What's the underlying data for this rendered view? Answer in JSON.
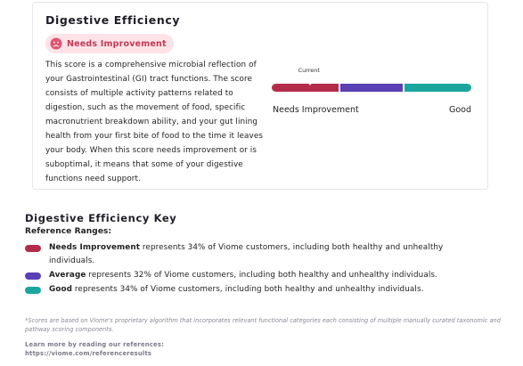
{
  "card": {
    "title": "Digestive Efficiency",
    "badge": {
      "label": "Needs Improvement",
      "icon": "sad-face-icon",
      "color": "#c23a55"
    },
    "description": "This score is a comprehensive microbial reflection of your Gastrointestinal (GI) tract functions. The score consists of multiple activity patterns related to digestion, such as the movement of food, specific macronutrient breakdown ability, and your gut lining health from your first bite of food to the time it leaves your body. When this score needs improvement or is suboptimal, it means that some of your digestive functions need support.",
    "gauge": {
      "current_label": "Current",
      "current_position_fraction": 0.19,
      "segments": [
        {
          "name": "Needs Improvement",
          "share": 34,
          "color": "#b32d4b"
        },
        {
          "name": "Average",
          "share": 32,
          "color": "#5a3fb5"
        },
        {
          "name": "Good",
          "share": 34,
          "color": "#1aa69e"
        }
      ],
      "left_label": "Needs Improvement",
      "right_label": "Good"
    }
  },
  "key": {
    "title": "Digestive Efficiency Key",
    "reference_heading": "Reference Ranges:",
    "items": [
      {
        "label": "Needs Improvement",
        "text": " represents 34% of Viome customers, including both healthy and unhealthy individuals.",
        "color": "#b32d4b"
      },
      {
        "label": "Average",
        "text": " represents 32% of Viome customers, including both healthy and unhealthy individuals.",
        "color": "#5a3fb5"
      },
      {
        "label": "Good",
        "text": " represents 34% of Viome customers, including both healthy and unhealthy individuals.",
        "color": "#1aa69e"
      }
    ]
  },
  "footnote": "*Scores are based on Viome's proprietary algorithm that incorporates relevant functional categories each consisting of multiple manually curated taxonomic and pathway scoring components.",
  "learn_more": {
    "heading": "Learn more by reading our references:",
    "url": "https://viome.com/referenceresults"
  }
}
